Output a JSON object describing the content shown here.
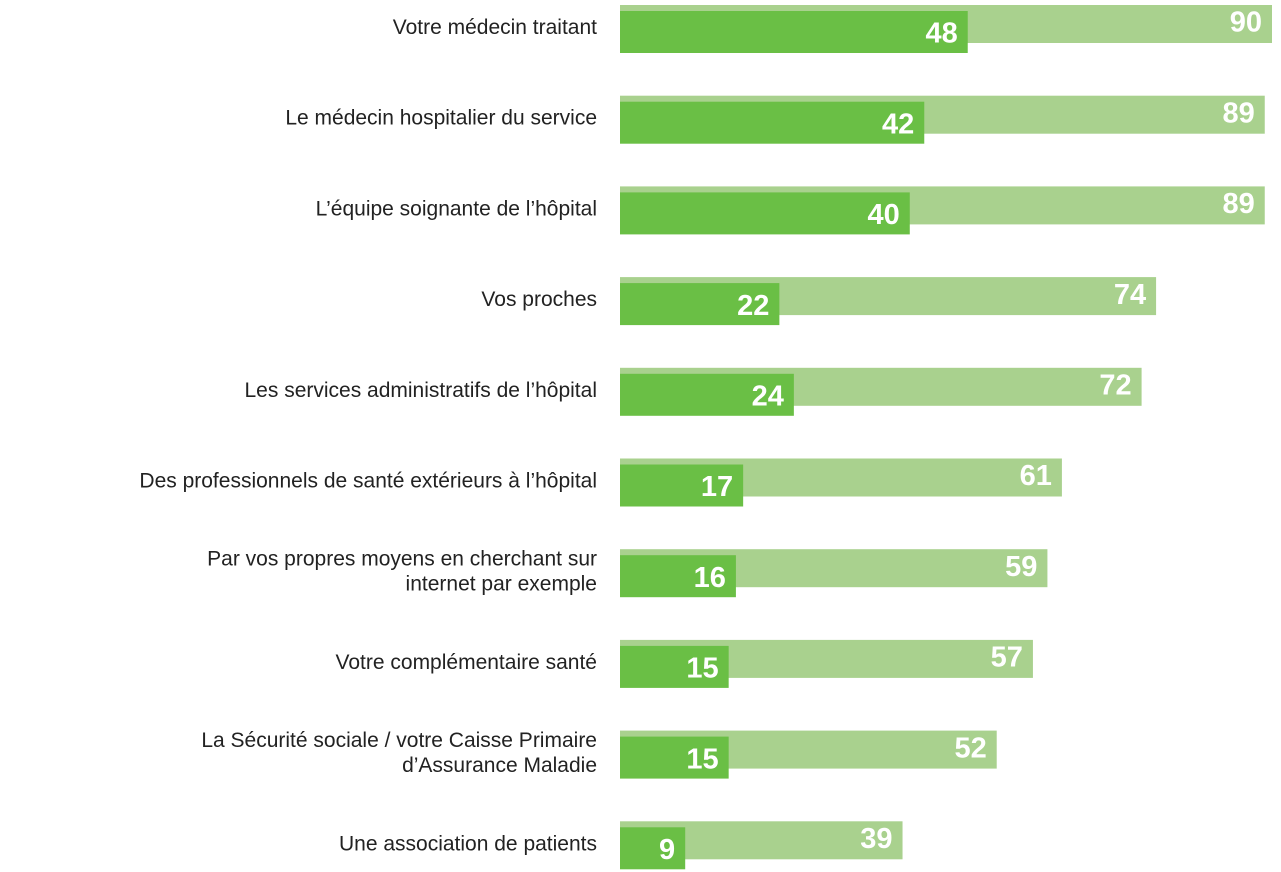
{
  "chart_data": {
    "type": "bar",
    "orientation": "horizontal",
    "categories": [
      "Votre médecin traitant",
      "Le médecin hospitalier du service",
      "L’équipe soignante de l’hôpital",
      "Vos proches",
      "Les services administratifs de l’hôpital",
      "Des professionnels de santé extérieurs à l’hôpital",
      "Par vos propres moyens en cherchant sur\ninternet par exemple",
      "Votre complémentaire santé",
      "La Sécurité sociale / votre Caisse Primaire\nd’Assurance Maladie",
      "Une association de patients"
    ],
    "series": [
      {
        "color": "#a9d18e",
        "values": [
          90,
          89,
          89,
          74,
          72,
          61,
          59,
          57,
          52,
          39
        ]
      },
      {
        "color": "#6abf45",
        "values": [
          48,
          42,
          40,
          22,
          24,
          17,
          16,
          15,
          15,
          9
        ]
      }
    ],
    "xlim": [
      0,
      90
    ]
  }
}
